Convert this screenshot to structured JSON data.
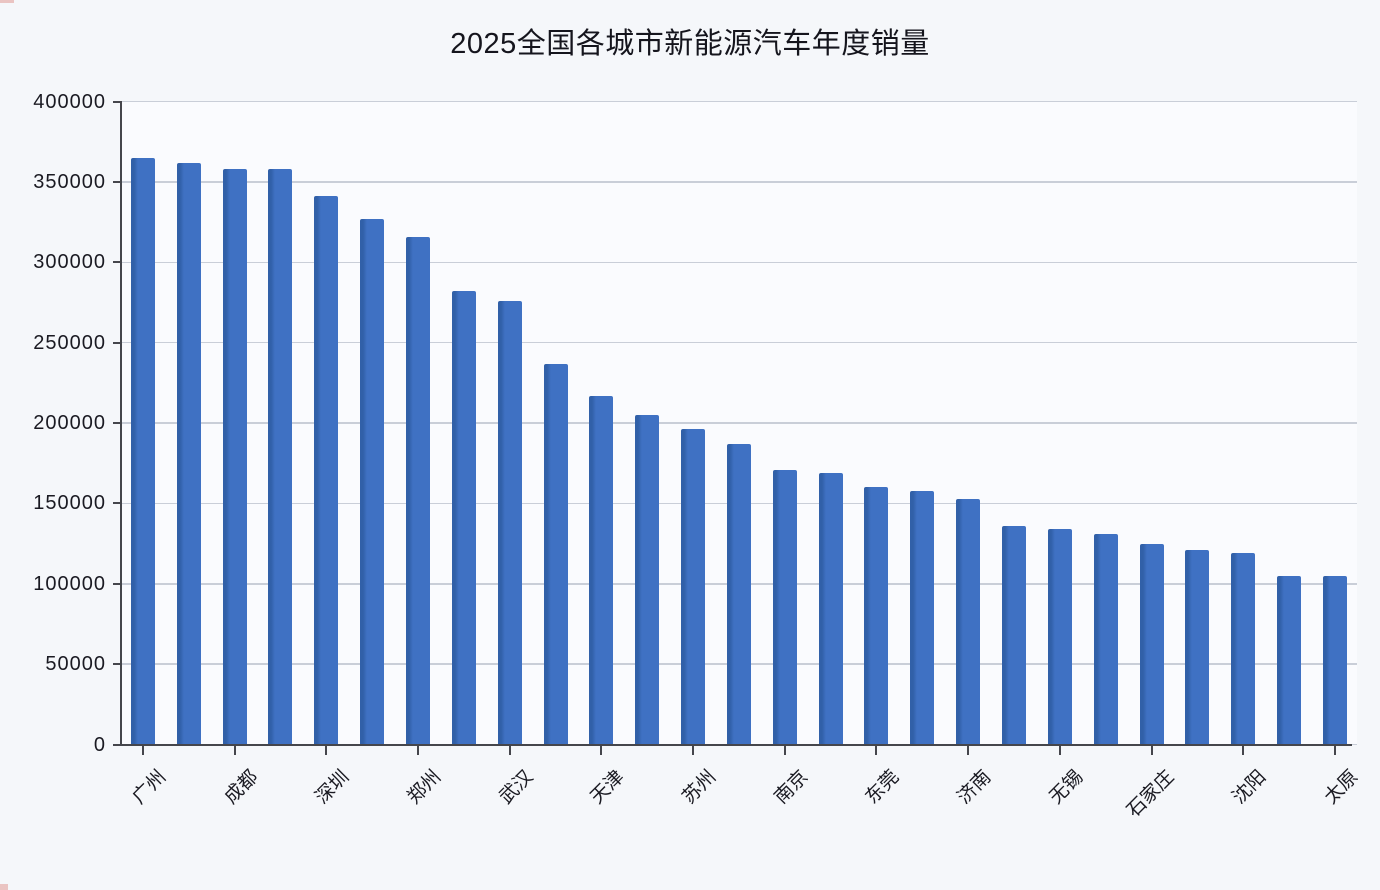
{
  "chart_data": {
    "type": "bar",
    "title": "2025全国各城市新能源汽车年度销量",
    "categories": [
      "广州",
      "",
      "成都",
      "",
      "深圳",
      "",
      "郑州",
      "",
      "武汉",
      "",
      "天津",
      "",
      "苏州",
      "",
      "南京",
      "",
      "东莞",
      "",
      "济南",
      "",
      "无锡",
      "",
      "石家庄",
      "",
      "沈阳",
      "",
      "太原"
    ],
    "values": [
      365000,
      362000,
      358000,
      358000,
      341000,
      327000,
      316000,
      282000,
      276000,
      237000,
      217000,
      205000,
      196000,
      187000,
      171000,
      169000,
      160000,
      158000,
      153000,
      136000,
      134000,
      131000,
      125000,
      121000,
      119000,
      105000,
      105000
    ],
    "x_tick_labels": [
      "广州",
      "成都",
      "深圳",
      "郑州",
      "武汉",
      "天津",
      "苏州",
      "南京",
      "东莞",
      "济南",
      "无锡",
      "石家庄",
      "沈阳",
      "太原"
    ],
    "xlabel": "",
    "ylabel": "",
    "ylim": [
      0,
      400000
    ],
    "yticks": [
      0,
      50000,
      100000,
      150000,
      200000,
      250000,
      300000,
      350000,
      400000
    ],
    "ytick_labels": [
      "0",
      "50000",
      "100000",
      "150000",
      "200000",
      "250000",
      "300000",
      "350000",
      "400000"
    ],
    "grid": "horizontal-only",
    "legend": "none",
    "layout_hint": "27 bars sorted descending; x tick label on every other bar; x labels rotated 45deg",
    "bar_color": "#3f71c3",
    "background_color": "#f5f7fa",
    "axis_color": "#45464c",
    "gridline_color": "#c9ced8"
  }
}
